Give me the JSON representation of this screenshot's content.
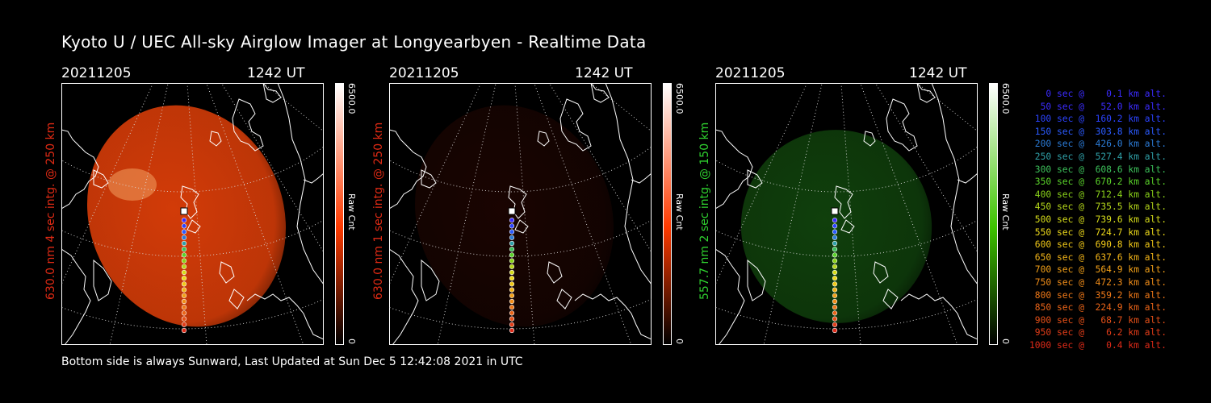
{
  "title": "Kyoto U / UEC All-sky Airglow Imager at Longyearbyen - Realtime Data",
  "footer": "Bottom side is always Sunward, Last Updated at Sun Dec  5 12:42:08 2021 in UTC",
  "panels": [
    {
      "date": "20211205",
      "time": "1242 UT",
      "ylabel": "630.0 nm  4 sec intg. @ 250 km",
      "cbar_max": "6500.0",
      "cbar_min": "0",
      "cbar_label": "Raw Cnt",
      "label_color": "#e02a14",
      "cbar_color": "#ff3a00",
      "glow_color": "#d23b08",
      "intensity": 0.9
    },
    {
      "date": "20211205",
      "time": "1242 UT",
      "ylabel": "630.0 nm  1 sec intg. @ 250 km",
      "cbar_max": "6500.0",
      "cbar_min": "0",
      "cbar_label": "Raw Cnt",
      "label_color": "#e02a14",
      "cbar_color": "#ff3a00",
      "glow_color": "#4a0d04",
      "intensity": 0.25
    },
    {
      "date": "20211205",
      "time": "1242 UT",
      "ylabel": "557.7 nm  2 sec intg. @ 150 km",
      "cbar_max": "6500.0",
      "cbar_min": "0",
      "cbar_label": "Raw Cnt",
      "label_color": "#2fd12f",
      "cbar_color": "#3ec400",
      "glow_color": "#1a6a14",
      "intensity": 0.5
    }
  ],
  "legend": [
    {
      "text": "0 sec @    0.1 km alt.",
      "color": "#3b2bff"
    },
    {
      "text": "50 sec @   52.0 km alt.",
      "color": "#3b2bff"
    },
    {
      "text": "100 sec @  160.2 km alt.",
      "color": "#2b43ff"
    },
    {
      "text": "150 sec @  303.8 km alt.",
      "color": "#2b5bff"
    },
    {
      "text": "200 sec @  426.0 km alt.",
      "color": "#2b7bd6"
    },
    {
      "text": "250 sec @  527.4 km alt.",
      "color": "#2fa0a8"
    },
    {
      "text": "300 sec @  608.6 km alt.",
      "color": "#3cc05a"
    },
    {
      "text": "350 sec @  670.2 km alt.",
      "color": "#5ad22a"
    },
    {
      "text": "400 sec @  712.4 km alt.",
      "color": "#8ad21a"
    },
    {
      "text": "450 sec @  735.5 km alt.",
      "color": "#b4d61a"
    },
    {
      "text": "500 sec @  739.6 km alt.",
      "color": "#d6dc1a"
    },
    {
      "text": "550 sec @  724.7 km alt.",
      "color": "#ecd81a"
    },
    {
      "text": "600 sec @  690.8 km alt.",
      "color": "#f0c818"
    },
    {
      "text": "650 sec @  637.6 km alt.",
      "color": "#f2b418"
    },
    {
      "text": "700 sec @  564.9 km alt.",
      "color": "#f2a018"
    },
    {
      "text": "750 sec @  472.3 km alt.",
      "color": "#f08c18"
    },
    {
      "text": "800 sec @  359.2 km alt.",
      "color": "#ee7818"
    },
    {
      "text": "850 sec @  224.9 km alt.",
      "color": "#ea6418"
    },
    {
      "text": "900 sec @   68.7 km alt.",
      "color": "#e65018"
    },
    {
      "text": "950 sec @    6.2 km alt.",
      "color": "#e23c18"
    },
    {
      "text": "1000 sec @    0.4 km alt.",
      "color": "#de2a18"
    }
  ]
}
